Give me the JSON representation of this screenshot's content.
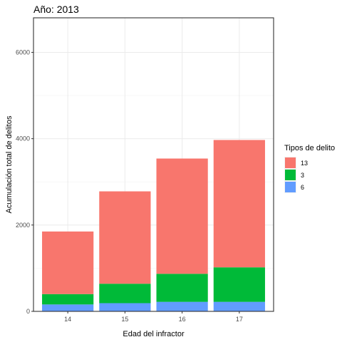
{
  "chart_data": {
    "type": "bar",
    "stacked": true,
    "title": "Año: 2013",
    "xlabel": "Edad del infractor",
    "ylabel": "Acumulación total de delitos",
    "categories": [
      "14",
      "15",
      "16",
      "17"
    ],
    "series": [
      {
        "name": "6",
        "color": "#619CFF",
        "values": [
          160,
          190,
          220,
          220
        ]
      },
      {
        "name": "3",
        "color": "#00BA38",
        "values": [
          240,
          450,
          650,
          800
        ]
      },
      {
        "name": "13",
        "color": "#F8766D",
        "values": [
          1450,
          2140,
          2670,
          2950
        ]
      }
    ],
    "ylim": [
      0,
      6800
    ],
    "yticks": [
      0,
      2000,
      4000,
      6000
    ],
    "grid": true,
    "legend": {
      "title": "Tipos de delito",
      "position": "right",
      "order": [
        "13",
        "3",
        "6"
      ]
    }
  }
}
